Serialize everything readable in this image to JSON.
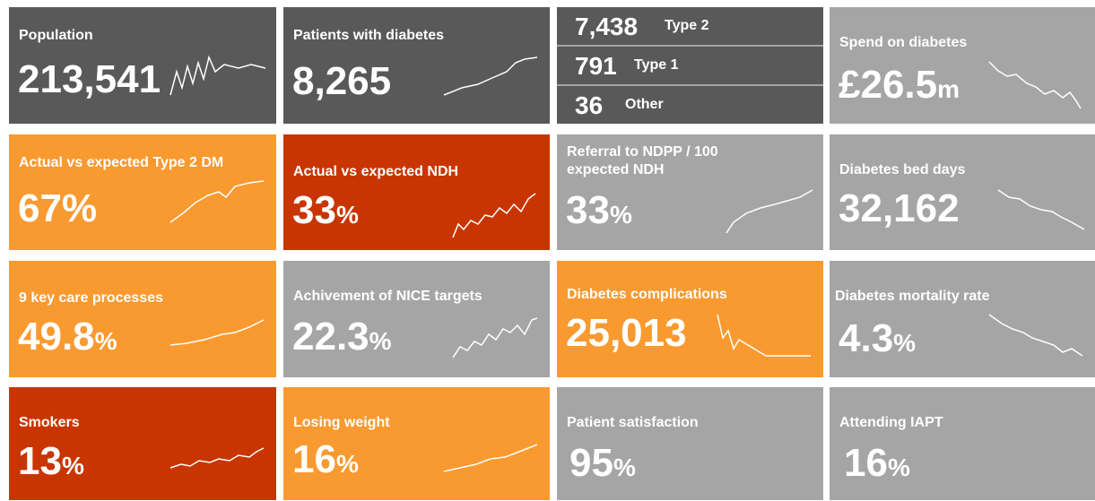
{
  "tiles": [
    {
      "title": "Population",
      "value": "213,541"
    },
    {
      "title": "Patients with diabetes",
      "value": "8,265"
    },
    {
      "rows": [
        {
          "value": "7,438",
          "label": "Type 2"
        },
        {
          "value": "791",
          "label": "Type 1"
        },
        {
          "value": "36",
          "label": "Other"
        }
      ]
    },
    {
      "title": "Spend on diabetes",
      "value": "£26.5",
      "unit": "m"
    },
    {
      "title": "Actual vs expected Type 2 DM",
      "value": "67%"
    },
    {
      "title": "Actual vs expected NDH",
      "value": "33",
      "unit": "%"
    },
    {
      "title": "Referral to NDPP / 100 expected NDH",
      "value": "33",
      "unit": "%"
    },
    {
      "title": "Diabetes bed days",
      "value": "32,162"
    },
    {
      "title": "9 key care processes",
      "value": "49.8",
      "unit": "%"
    },
    {
      "title": "Achivement of NICE targets",
      "value": "22.3",
      "unit": "%"
    },
    {
      "title": "Diabetes complications",
      "value": "25,013"
    },
    {
      "title": "Diabetes mortality rate",
      "value": "4.3",
      "unit": "%"
    },
    {
      "title": "Smokers",
      "value": "13",
      "unit": "%"
    },
    {
      "title": "Losing weight",
      "value": "16",
      "unit": "%"
    },
    {
      "title": "Patient satisfaction",
      "value": "95",
      "unit": "%"
    },
    {
      "title": "Attending IAPT",
      "value": "16",
      "unit": "%"
    }
  ]
}
